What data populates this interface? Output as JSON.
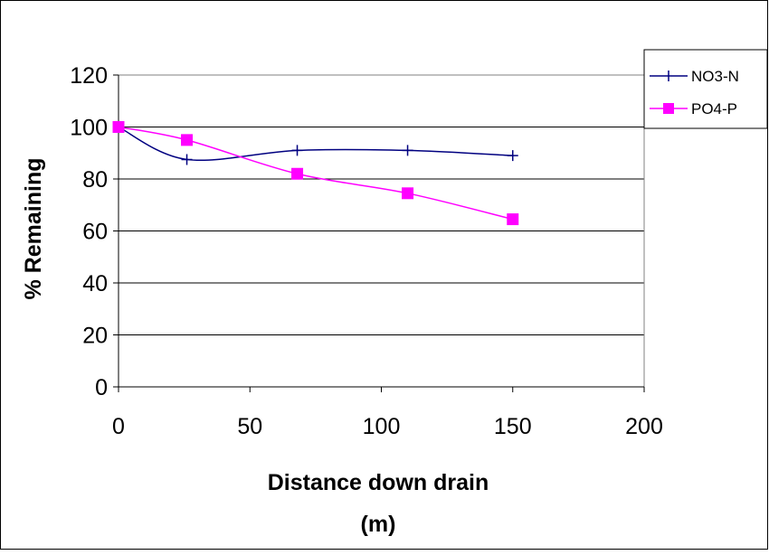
{
  "chart_data": {
    "type": "line",
    "title": "",
    "xlabel_line1": "Distance down drain",
    "xlabel_line2": "(m)",
    "ylabel": "% Remaining",
    "xlim": [
      0,
      200
    ],
    "ylim": [
      0,
      120
    ],
    "xticks": [
      0,
      50,
      100,
      150,
      200
    ],
    "yticks": [
      0,
      20,
      40,
      60,
      80,
      100,
      120
    ],
    "grid": "horizontal",
    "legend_position": "top-right",
    "series": [
      {
        "name": "NO3-N",
        "color": "#000080",
        "marker": "plus",
        "points": [
          [
            0,
            100
          ],
          [
            26,
            87.5
          ],
          [
            68,
            91
          ],
          [
            110,
            91
          ],
          [
            150,
            89
          ]
        ]
      },
      {
        "name": "PO4-P",
        "color": "#ff00ff",
        "marker": "square",
        "points": [
          [
            0,
            100
          ],
          [
            26,
            95
          ],
          [
            68,
            82
          ],
          [
            110,
            74.5
          ],
          [
            150,
            64.5
          ]
        ]
      }
    ]
  }
}
